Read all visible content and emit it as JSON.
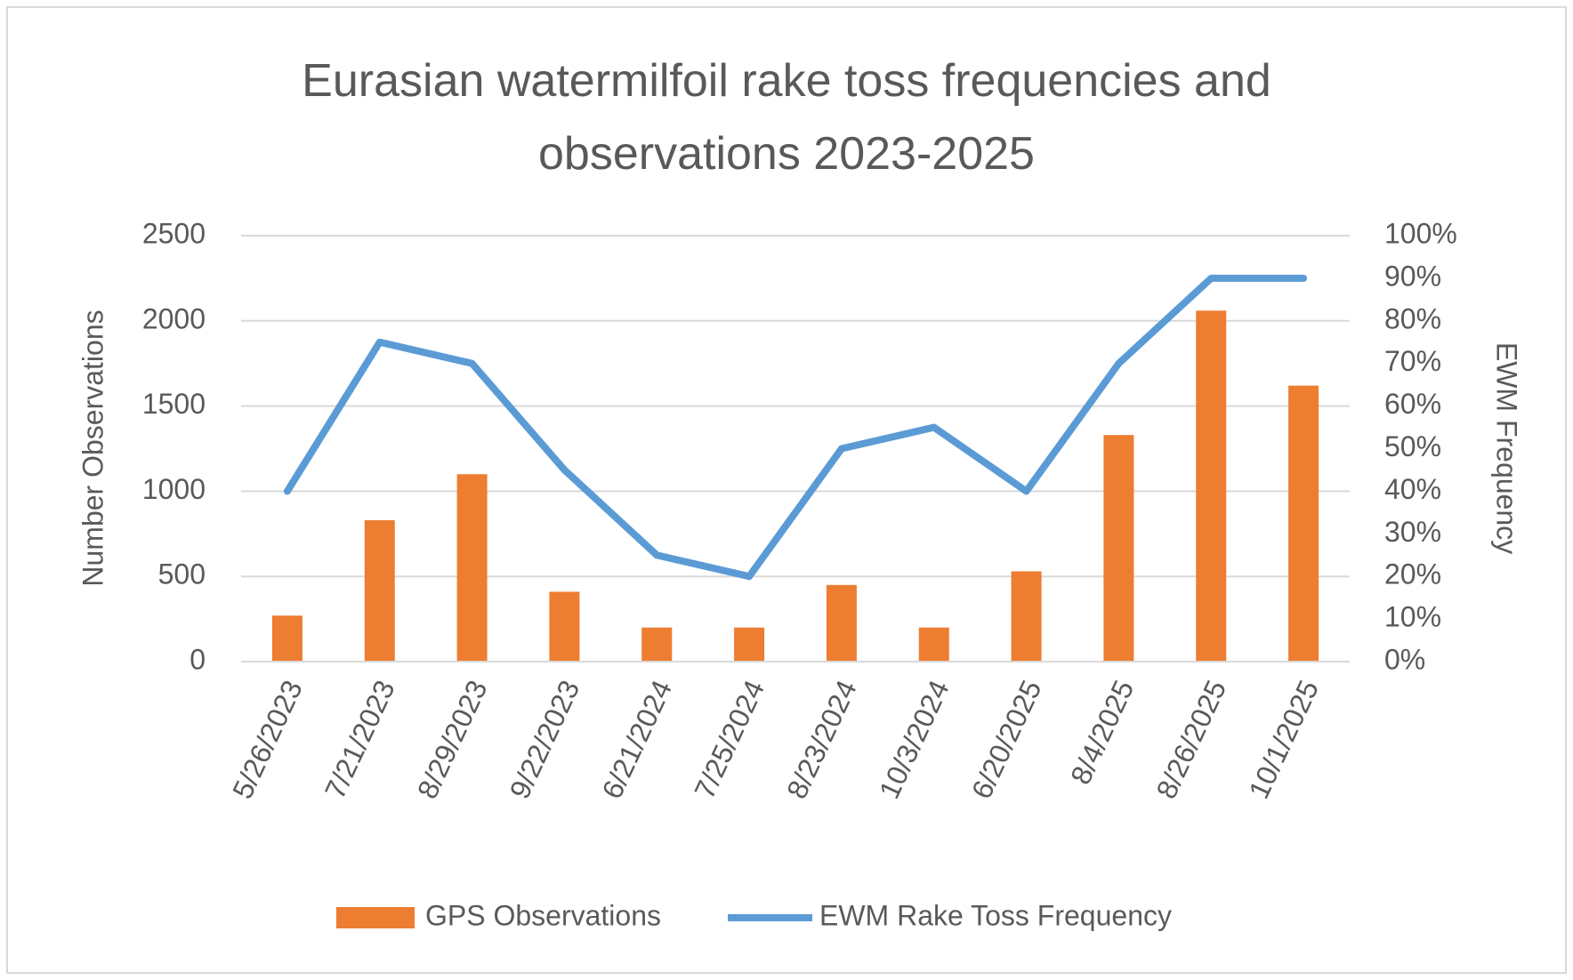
{
  "chart_data": {
    "type": "bar",
    "title": "Eurasian watermilfoil rake toss frequencies and observations 2023-2025",
    "y_label": "Number Observations",
    "y2_label": "EWM Frequency",
    "categories": [
      "5/26/2023",
      "7/21/2023",
      "8/29/2023",
      "9/22/2023",
      "6/21/2024",
      "7/25/2024",
      "8/23/2024",
      "10/3/2024",
      "6/20/2025",
      "8/4/2025",
      "8/26/2025",
      "10/1/2025"
    ],
    "series": [
      {
        "name": "GPS Observations",
        "type": "bar",
        "color": "#ed7d31",
        "values": [
          270,
          830,
          1100,
          410,
          200,
          200,
          450,
          200,
          530,
          1330,
          2060,
          1620
        ]
      },
      {
        "name": "EWM Rake Toss Frequency",
        "type": "line",
        "axis": "y2",
        "color": "#5b9bd5",
        "values": [
          40,
          75,
          70,
          45,
          25,
          20,
          50,
          55,
          40,
          70,
          90,
          90
        ]
      }
    ],
    "ylim": [
      0,
      2500
    ],
    "yticks": [
      0,
      500,
      1000,
      1500,
      2000,
      2500
    ],
    "y2lim": [
      0,
      100
    ],
    "y2ticks": [
      {
        "value": 0,
        "label": "0%"
      },
      {
        "value": 10,
        "label": "10%"
      },
      {
        "value": 20,
        "label": "20%"
      },
      {
        "value": 30,
        "label": "30%"
      },
      {
        "value": 40,
        "label": "40%"
      },
      {
        "value": 50,
        "label": "50%"
      },
      {
        "value": 60,
        "label": "60%"
      },
      {
        "value": 70,
        "label": "70%"
      },
      {
        "value": 80,
        "label": "80%"
      },
      {
        "value": 90,
        "label": "90%"
      },
      {
        "value": 100,
        "label": "100%"
      }
    ],
    "grid": true,
    "legend": "bottom"
  }
}
